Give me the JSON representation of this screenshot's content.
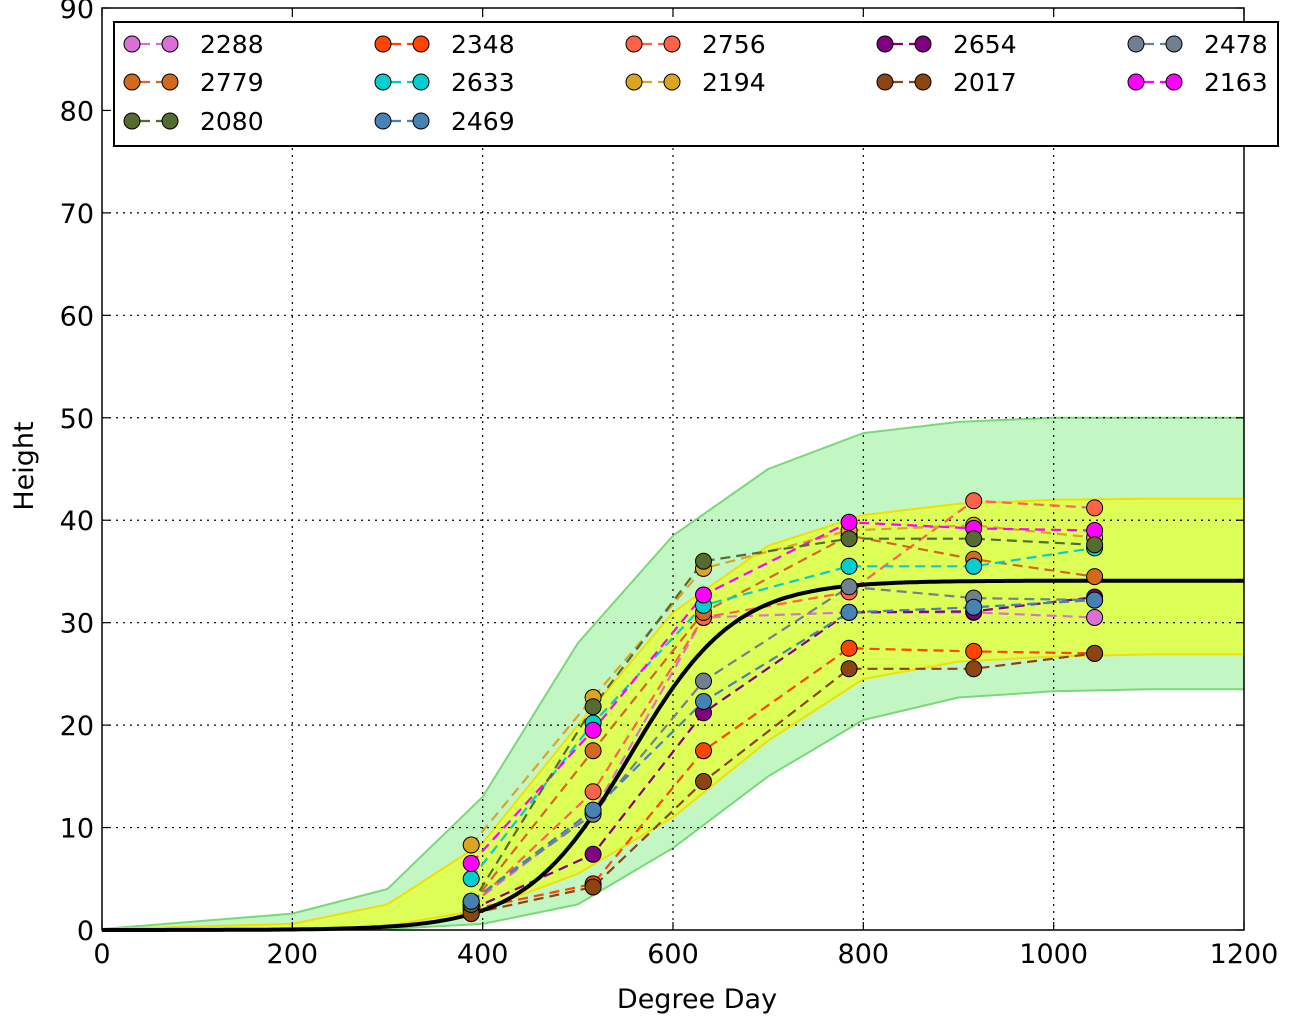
{
  "chart_data": {
    "type": "line",
    "xlabel": "Degree Day",
    "ylabel": "Height",
    "xlim": [
      0,
      1200
    ],
    "ylim": [
      0,
      90
    ],
    "xticks": [
      0,
      200,
      400,
      600,
      800,
      1000,
      1200
    ],
    "yticks": [
      0,
      10,
      20,
      30,
      40,
      50,
      60,
      70,
      80,
      90
    ],
    "grid": true,
    "legend_position": "top",
    "x_points": [
      388,
      516,
      632,
      785,
      916,
      1043
    ],
    "fit_curve": {
      "name": "",
      "color": "#000000",
      "asymptote": 34.1,
      "midpoint": 555,
      "scale": 55
    },
    "band_outer": {
      "color": "#90ee90",
      "lower": [
        [
          0,
          0
        ],
        [
          300,
          0.1
        ],
        [
          400,
          0.6
        ],
        [
          500,
          2.5
        ],
        [
          600,
          8
        ],
        [
          700,
          15
        ],
        [
          800,
          20.5
        ],
        [
          900,
          22.7
        ],
        [
          1000,
          23.3
        ],
        [
          1100,
          23.5
        ],
        [
          1200,
          23.5
        ]
      ],
      "upper": [
        [
          0,
          0.1
        ],
        [
          200,
          1.6
        ],
        [
          300,
          4
        ],
        [
          400,
          13
        ],
        [
          500,
          28
        ],
        [
          600,
          38.5
        ],
        [
          700,
          45
        ],
        [
          800,
          48.5
        ],
        [
          900,
          49.6
        ],
        [
          1000,
          50
        ],
        [
          1100,
          50
        ],
        [
          1200,
          50
        ]
      ]
    },
    "band_inner": {
      "color": "#dfff4a",
      "lower": [
        [
          0,
          0
        ],
        [
          200,
          0.1
        ],
        [
          300,
          0.4
        ],
        [
          400,
          2
        ],
        [
          500,
          5.5
        ],
        [
          600,
          11
        ],
        [
          700,
          18.5
        ],
        [
          800,
          24.5
        ],
        [
          900,
          26.2
        ],
        [
          1000,
          26.7
        ],
        [
          1100,
          26.9
        ],
        [
          1200,
          26.9
        ]
      ],
      "upper": [
        [
          0,
          0.1
        ],
        [
          200,
          0.6
        ],
        [
          300,
          2.5
        ],
        [
          400,
          8.5
        ],
        [
          500,
          20
        ],
        [
          600,
          31
        ],
        [
          700,
          37.5
        ],
        [
          800,
          40.5
        ],
        [
          900,
          41.6
        ],
        [
          1000,
          42
        ],
        [
          1100,
          42.1
        ],
        [
          1200,
          42.1
        ]
      ]
    },
    "series": [
      {
        "name": "2288",
        "color": "#da70d6",
        "values": [
          2.5,
          11.5,
          30.5,
          31,
          31,
          30.5
        ]
      },
      {
        "name": "2348",
        "color": "#ff4500",
        "values": [
          2.0,
          4.5,
          17.5,
          27.5,
          27.2,
          27.0
        ]
      },
      {
        "name": "2756",
        "color": "#ff6347",
        "values": [
          2.3,
          13.5,
          30.5,
          33,
          41.9,
          41.2
        ]
      },
      {
        "name": "2654",
        "color": "#800080",
        "values": [
          2.0,
          7.4,
          21.2,
          31,
          31.1,
          32.5
        ]
      },
      {
        "name": "2478",
        "color": "#708090",
        "values": [
          2.8,
          11.3,
          24.3,
          33.5,
          32.4,
          32.2
        ]
      },
      {
        "name": "2779",
        "color": "#d2691e",
        "values": [
          2.5,
          17.5,
          31,
          38.5,
          36.2,
          34.5
        ]
      },
      {
        "name": "2633",
        "color": "#00ced1",
        "values": [
          5.0,
          20.2,
          31.7,
          35.5,
          35.5,
          37.3
        ]
      },
      {
        "name": "2194",
        "color": "#daa520",
        "values": [
          8.3,
          22.7,
          35.3,
          39,
          39.5,
          38.3
        ]
      },
      {
        "name": "2017",
        "color": "#8b4513",
        "values": [
          1.6,
          4.2,
          14.5,
          25.5,
          25.5,
          27.0
        ]
      },
      {
        "name": "2163",
        "color": "#ff00ff",
        "values": [
          6.5,
          19.5,
          32.7,
          39.8,
          39.2,
          39.0
        ]
      },
      {
        "name": "2080",
        "color": "#556b2f",
        "values": [
          2.5,
          21.8,
          36.0,
          38.2,
          38.2,
          37.6
        ]
      },
      {
        "name": "2469",
        "color": "#4682b4",
        "values": [
          2.8,
          11.7,
          22.3,
          31,
          31.5,
          32.2
        ]
      }
    ]
  }
}
